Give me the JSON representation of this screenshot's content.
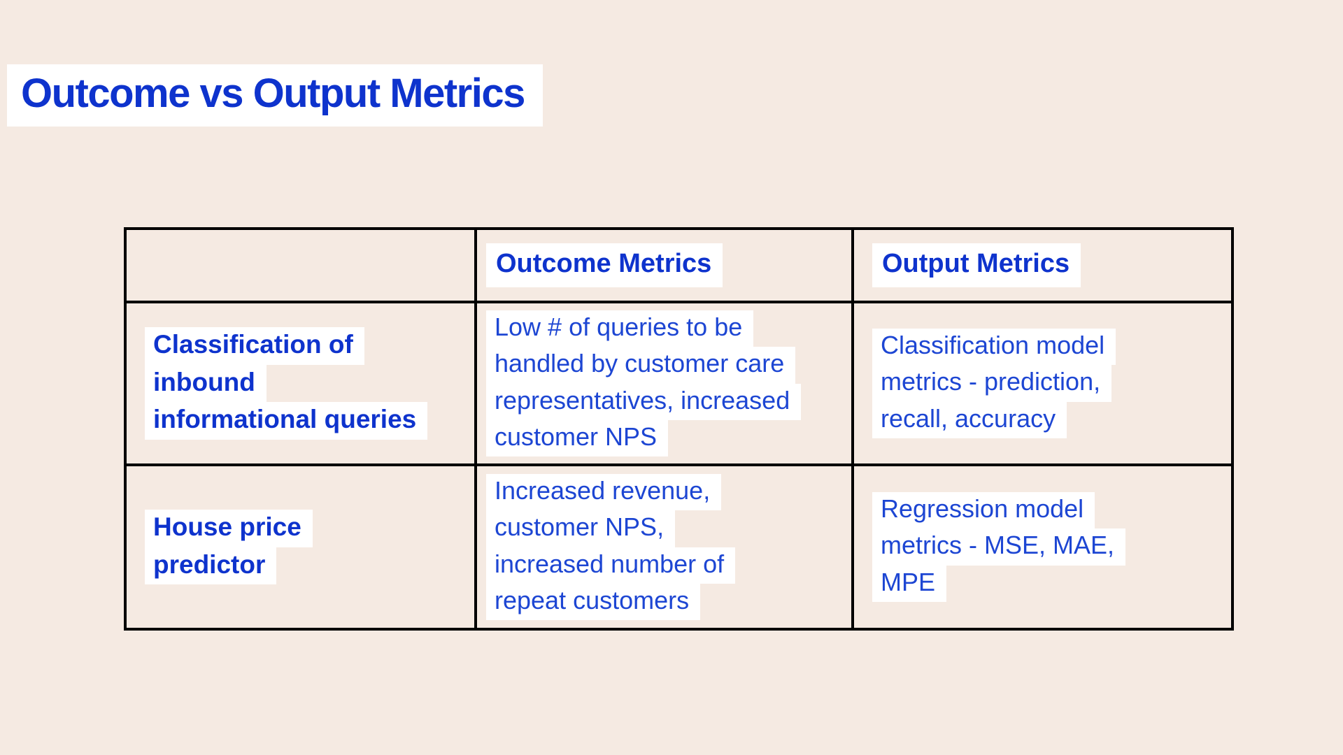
{
  "colors": {
    "background": "#f5eae2",
    "highlight": "#ffffff",
    "title_blue": "#0e33cd",
    "body_blue": "#1d46d3",
    "table_border": "#000000"
  },
  "title": "Outcome vs Output Metrics",
  "table": {
    "headers": {
      "row_label": "",
      "outcome": "Outcome Metrics",
      "output": "Output Metrics"
    },
    "rows": [
      {
        "label_lines": [
          "Classification of",
          "inbound",
          "informational queries"
        ],
        "outcome_lines": [
          "Low # of queries to be",
          "handled by customer care",
          "representatives, increased",
          "customer NPS"
        ],
        "output_lines": [
          "Classification model",
          "metrics - prediction,",
          "recall, accuracy"
        ]
      },
      {
        "label_lines": [
          "House price",
          "predictor"
        ],
        "outcome_lines": [
          "Increased revenue,",
          "customer NPS,",
          "increased number of",
          "repeat customers"
        ],
        "output_lines": [
          "Regression model",
          "metrics - MSE, MAE,",
          "MPE"
        ]
      }
    ]
  }
}
